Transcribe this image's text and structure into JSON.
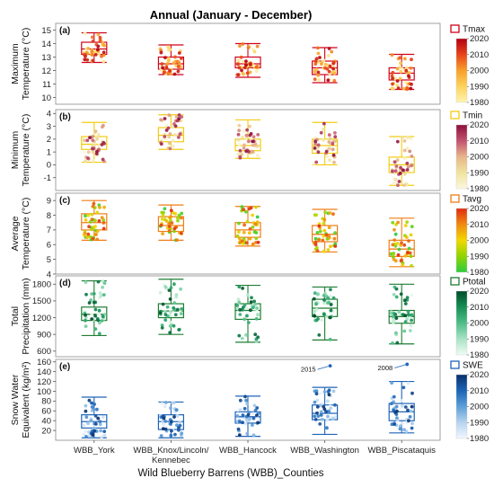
{
  "title": "Annual (January - December)",
  "xlabel": "Wild Blueberry Barrens (WBB)_Counties",
  "chart_data": {
    "type": "box",
    "categories": [
      "WBB_York",
      "WBB_Knox/Lincoln/Kennebec",
      "WBB_Hancock",
      "WBB_Washington",
      "WBB_Piscataquis"
    ],
    "year_range": [
      1980,
      2020
    ],
    "panels": [
      {
        "label": "(a)",
        "ylabel": [
          "Maximum",
          "Temperature (°C)"
        ],
        "legend": "Tmax",
        "ylim": [
          9.5,
          15.5
        ],
        "yticks": [
          10,
          11,
          12,
          13,
          14,
          15
        ],
        "box_color": "#d0021b",
        "colormap": [
          "#fff4b0",
          "#fdd35c",
          "#f7a02a",
          "#e8431c",
          "#b30012"
        ],
        "stats": [
          {
            "min": 12.6,
            "q1": 13.2,
            "median": 13.6,
            "q3": 14.1,
            "max": 14.8
          },
          {
            "min": 11.7,
            "q1": 12.1,
            "median": 12.5,
            "q3": 13.0,
            "max": 13.9
          },
          {
            "min": 11.5,
            "q1": 12.2,
            "median": 12.5,
            "q3": 13.0,
            "max": 14.0
          },
          {
            "min": 11.1,
            "q1": 11.7,
            "median": 12.2,
            "q3": 12.7,
            "max": 13.7
          },
          {
            "min": 10.6,
            "q1": 11.3,
            "median": 11.8,
            "q3": 12.2,
            "max": 13.2
          }
        ]
      },
      {
        "label": "(b)",
        "ylabel": [
          "Minimum",
          "Temperature (°C)"
        ],
        "legend": "Tmin",
        "ylim": [
          -2,
          4.3
        ],
        "yticks": [
          -1,
          0,
          1,
          2,
          3,
          4
        ],
        "box_color": "#f2cc10",
        "colormap": [
          "#fbf7dc",
          "#f0e4a0",
          "#e8b58a",
          "#c2536e",
          "#8e0e3c"
        ],
        "stats": [
          {
            "min": 0.2,
            "q1": 1.2,
            "median": 1.6,
            "q3": 2.2,
            "max": 3.3
          },
          {
            "min": 1.2,
            "q1": 1.8,
            "median": 2.3,
            "q3": 2.9,
            "max": 3.9
          },
          {
            "min": 0.5,
            "q1": 1.1,
            "median": 1.5,
            "q3": 2.0,
            "max": 3.5
          },
          {
            "min": 0.0,
            "q1": 0.9,
            "median": 1.5,
            "q3": 2.0,
            "max": 3.3
          },
          {
            "min": -1.6,
            "q1": -0.6,
            "median": 0.0,
            "q3": 0.6,
            "max": 2.2
          }
        ]
      },
      {
        "label": "(c)",
        "ylabel": [
          "Average",
          "Temperature (°C)"
        ],
        "legend": "Tavg",
        "ylim": [
          4,
          9.5
        ],
        "yticks": [
          4,
          5,
          6,
          7,
          8,
          9
        ],
        "box_color": "#f07d15",
        "colormap": [
          "#2ecc40",
          "#8fd400",
          "#f2d700",
          "#f08a10",
          "#e02a10"
        ],
        "stats": [
          {
            "min": 6.3,
            "q1": 7.0,
            "median": 7.5,
            "q3": 8.1,
            "max": 9.0
          },
          {
            "min": 6.3,
            "q1": 6.9,
            "median": 7.3,
            "q3": 7.9,
            "max": 8.7
          },
          {
            "min": 5.9,
            "q1": 6.5,
            "median": 7.0,
            "q3": 7.5,
            "max": 8.6
          },
          {
            "min": 5.5,
            "q1": 6.2,
            "median": 6.7,
            "q3": 7.3,
            "max": 8.4
          },
          {
            "min": 4.5,
            "q1": 5.2,
            "median": 5.7,
            "q3": 6.3,
            "max": 7.8
          }
        ]
      },
      {
        "label": "(d)",
        "ylabel": [
          "Total",
          "Precipitation (mm)"
        ],
        "legend": "Ptotal",
        "ylim": [
          500,
          1950
        ],
        "yticks": [
          600,
          900,
          1200,
          1500,
          1800
        ],
        "box_color": "#1e7d32",
        "colormap": [
          "#f0fbf4",
          "#a8e3c4",
          "#4fbd88",
          "#178f55",
          "#004d29"
        ],
        "stats": [
          {
            "min": 880,
            "q1": 1150,
            "median": 1260,
            "q3": 1390,
            "max": 1860
          },
          {
            "min": 900,
            "q1": 1200,
            "median": 1320,
            "q3": 1450,
            "max": 1890
          },
          {
            "min": 760,
            "q1": 1170,
            "median": 1330,
            "q3": 1450,
            "max": 1780
          },
          {
            "min": 800,
            "q1": 1220,
            "median": 1370,
            "q3": 1530,
            "max": 1750
          },
          {
            "min": 730,
            "q1": 1100,
            "median": 1220,
            "q3": 1330,
            "max": 1800
          }
        ]
      },
      {
        "label": "(e)",
        "ylabel": [
          "Snow Water",
          "Equivalent (kg/m²)"
        ],
        "legend": "SWE",
        "ylim": [
          0,
          165
        ],
        "yticks": [
          20,
          40,
          60,
          80,
          100,
          120,
          140,
          160
        ],
        "box_color": "#1f64b8",
        "colormap": [
          "#f2f7ff",
          "#b7d4f0",
          "#5e9fd8",
          "#1d64b5",
          "#08306b"
        ],
        "stats": [
          {
            "min": 5,
            "q1": 25,
            "median": 38,
            "q3": 52,
            "max": 88
          },
          {
            "min": 5,
            "q1": 22,
            "median": 38,
            "q3": 52,
            "max": 78
          },
          {
            "min": 8,
            "q1": 35,
            "median": 48,
            "q3": 58,
            "max": 90
          },
          {
            "min": 12,
            "q1": 42,
            "median": 55,
            "q3": 72,
            "max": 108
          },
          {
            "min": 15,
            "q1": 40,
            "median": 58,
            "q3": 75,
            "max": 120
          }
        ],
        "outliers": [
          {
            "category": 3,
            "value": 152,
            "label": "2015"
          },
          {
            "category": 4,
            "value": 155,
            "label": "2008"
          }
        ]
      }
    ]
  }
}
